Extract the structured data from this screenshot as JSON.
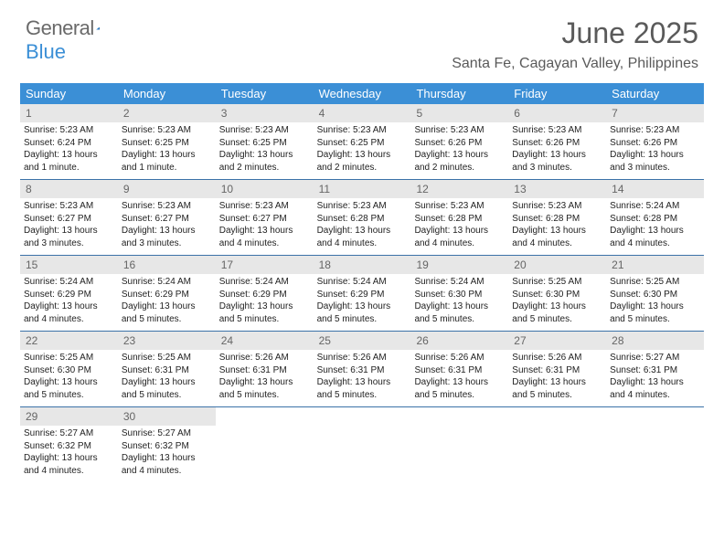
{
  "brand": {
    "part1": "General",
    "part2": "Blue"
  },
  "title": "June 2025",
  "location": "Santa Fe, Cagayan Valley, Philippines",
  "colors": {
    "header_bg": "#3b8fd6",
    "header_text": "#ffffff",
    "daynum_bg": "#e7e7e7",
    "daynum_text": "#666666",
    "rule": "#3b72a8",
    "body_text": "#222222",
    "page_bg": "#ffffff",
    "brand_gray": "#6a6a6a",
    "brand_blue": "#3b8fd6"
  },
  "days_of_week": [
    "Sunday",
    "Monday",
    "Tuesday",
    "Wednesday",
    "Thursday",
    "Friday",
    "Saturday"
  ],
  "weeks": [
    [
      {
        "n": "1",
        "sr": "Sunrise: 5:23 AM",
        "ss": "Sunset: 6:24 PM",
        "dl": "Daylight: 13 hours and 1 minute."
      },
      {
        "n": "2",
        "sr": "Sunrise: 5:23 AM",
        "ss": "Sunset: 6:25 PM",
        "dl": "Daylight: 13 hours and 1 minute."
      },
      {
        "n": "3",
        "sr": "Sunrise: 5:23 AM",
        "ss": "Sunset: 6:25 PM",
        "dl": "Daylight: 13 hours and 2 minutes."
      },
      {
        "n": "4",
        "sr": "Sunrise: 5:23 AM",
        "ss": "Sunset: 6:25 PM",
        "dl": "Daylight: 13 hours and 2 minutes."
      },
      {
        "n": "5",
        "sr": "Sunrise: 5:23 AM",
        "ss": "Sunset: 6:26 PM",
        "dl": "Daylight: 13 hours and 2 minutes."
      },
      {
        "n": "6",
        "sr": "Sunrise: 5:23 AM",
        "ss": "Sunset: 6:26 PM",
        "dl": "Daylight: 13 hours and 3 minutes."
      },
      {
        "n": "7",
        "sr": "Sunrise: 5:23 AM",
        "ss": "Sunset: 6:26 PM",
        "dl": "Daylight: 13 hours and 3 minutes."
      }
    ],
    [
      {
        "n": "8",
        "sr": "Sunrise: 5:23 AM",
        "ss": "Sunset: 6:27 PM",
        "dl": "Daylight: 13 hours and 3 minutes."
      },
      {
        "n": "9",
        "sr": "Sunrise: 5:23 AM",
        "ss": "Sunset: 6:27 PM",
        "dl": "Daylight: 13 hours and 3 minutes."
      },
      {
        "n": "10",
        "sr": "Sunrise: 5:23 AM",
        "ss": "Sunset: 6:27 PM",
        "dl": "Daylight: 13 hours and 4 minutes."
      },
      {
        "n": "11",
        "sr": "Sunrise: 5:23 AM",
        "ss": "Sunset: 6:28 PM",
        "dl": "Daylight: 13 hours and 4 minutes."
      },
      {
        "n": "12",
        "sr": "Sunrise: 5:23 AM",
        "ss": "Sunset: 6:28 PM",
        "dl": "Daylight: 13 hours and 4 minutes."
      },
      {
        "n": "13",
        "sr": "Sunrise: 5:23 AM",
        "ss": "Sunset: 6:28 PM",
        "dl": "Daylight: 13 hours and 4 minutes."
      },
      {
        "n": "14",
        "sr": "Sunrise: 5:24 AM",
        "ss": "Sunset: 6:28 PM",
        "dl": "Daylight: 13 hours and 4 minutes."
      }
    ],
    [
      {
        "n": "15",
        "sr": "Sunrise: 5:24 AM",
        "ss": "Sunset: 6:29 PM",
        "dl": "Daylight: 13 hours and 4 minutes."
      },
      {
        "n": "16",
        "sr": "Sunrise: 5:24 AM",
        "ss": "Sunset: 6:29 PM",
        "dl": "Daylight: 13 hours and 5 minutes."
      },
      {
        "n": "17",
        "sr": "Sunrise: 5:24 AM",
        "ss": "Sunset: 6:29 PM",
        "dl": "Daylight: 13 hours and 5 minutes."
      },
      {
        "n": "18",
        "sr": "Sunrise: 5:24 AM",
        "ss": "Sunset: 6:29 PM",
        "dl": "Daylight: 13 hours and 5 minutes."
      },
      {
        "n": "19",
        "sr": "Sunrise: 5:24 AM",
        "ss": "Sunset: 6:30 PM",
        "dl": "Daylight: 13 hours and 5 minutes."
      },
      {
        "n": "20",
        "sr": "Sunrise: 5:25 AM",
        "ss": "Sunset: 6:30 PM",
        "dl": "Daylight: 13 hours and 5 minutes."
      },
      {
        "n": "21",
        "sr": "Sunrise: 5:25 AM",
        "ss": "Sunset: 6:30 PM",
        "dl": "Daylight: 13 hours and 5 minutes."
      }
    ],
    [
      {
        "n": "22",
        "sr": "Sunrise: 5:25 AM",
        "ss": "Sunset: 6:30 PM",
        "dl": "Daylight: 13 hours and 5 minutes."
      },
      {
        "n": "23",
        "sr": "Sunrise: 5:25 AM",
        "ss": "Sunset: 6:31 PM",
        "dl": "Daylight: 13 hours and 5 minutes."
      },
      {
        "n": "24",
        "sr": "Sunrise: 5:26 AM",
        "ss": "Sunset: 6:31 PM",
        "dl": "Daylight: 13 hours and 5 minutes."
      },
      {
        "n": "25",
        "sr": "Sunrise: 5:26 AM",
        "ss": "Sunset: 6:31 PM",
        "dl": "Daylight: 13 hours and 5 minutes."
      },
      {
        "n": "26",
        "sr": "Sunrise: 5:26 AM",
        "ss": "Sunset: 6:31 PM",
        "dl": "Daylight: 13 hours and 5 minutes."
      },
      {
        "n": "27",
        "sr": "Sunrise: 5:26 AM",
        "ss": "Sunset: 6:31 PM",
        "dl": "Daylight: 13 hours and 5 minutes."
      },
      {
        "n": "28",
        "sr": "Sunrise: 5:27 AM",
        "ss": "Sunset: 6:31 PM",
        "dl": "Daylight: 13 hours and 4 minutes."
      }
    ],
    [
      {
        "n": "29",
        "sr": "Sunrise: 5:27 AM",
        "ss": "Sunset: 6:32 PM",
        "dl": "Daylight: 13 hours and 4 minutes."
      },
      {
        "n": "30",
        "sr": "Sunrise: 5:27 AM",
        "ss": "Sunset: 6:32 PM",
        "dl": "Daylight: 13 hours and 4 minutes."
      },
      {
        "empty": true
      },
      {
        "empty": true
      },
      {
        "empty": true
      },
      {
        "empty": true
      },
      {
        "empty": true
      }
    ]
  ]
}
